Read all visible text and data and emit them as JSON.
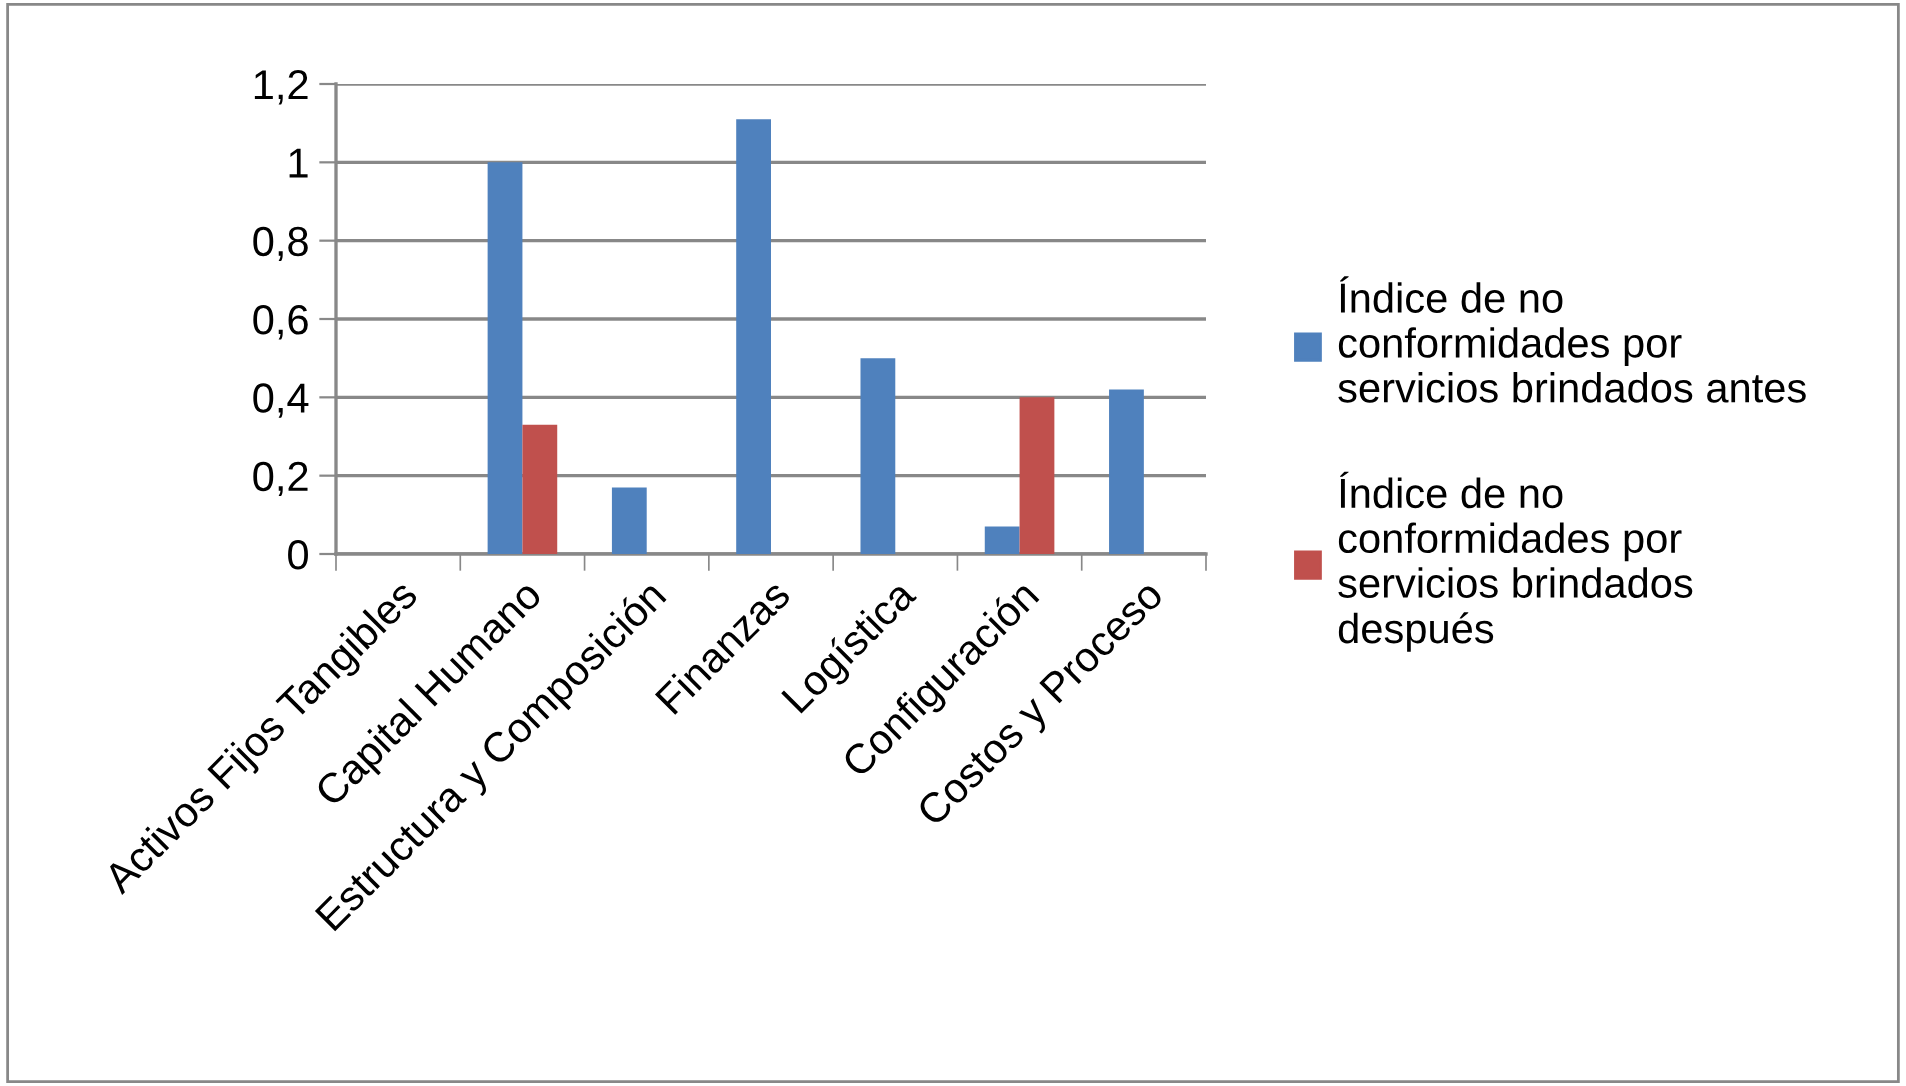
{
  "chart_data": {
    "type": "bar",
    "categories": [
      "Activos Fijos Tangibles",
      "Capital Humano",
      "Estructura y Composición",
      "Finanzas",
      "Logística",
      "Configuración",
      "Costos y Proceso"
    ],
    "series": [
      {
        "name": "Índice de no conformidades por servicios brindados antes",
        "color": "#4f81bd",
        "values": [
          0,
          1.0,
          0.17,
          1.11,
          0.5,
          0.07,
          0.42
        ]
      },
      {
        "name": "Índice de no conformidades por servicios brindados después",
        "color": "#c0504d",
        "values": [
          0,
          0.33,
          0,
          0,
          0,
          0.4,
          0
        ]
      }
    ],
    "ylim": [
      0,
      1.2
    ],
    "yticks": [
      {
        "value": 0,
        "label": "0"
      },
      {
        "value": 0.2,
        "label": "0,2"
      },
      {
        "value": 0.4,
        "label": "0,4"
      },
      {
        "value": 0.6,
        "label": "0,6"
      },
      {
        "value": 0.8,
        "label": "0,8"
      },
      {
        "value": 1,
        "label": "1"
      },
      {
        "value": 1.2,
        "label": "1,2"
      }
    ],
    "grid": "y",
    "legend": "right"
  }
}
